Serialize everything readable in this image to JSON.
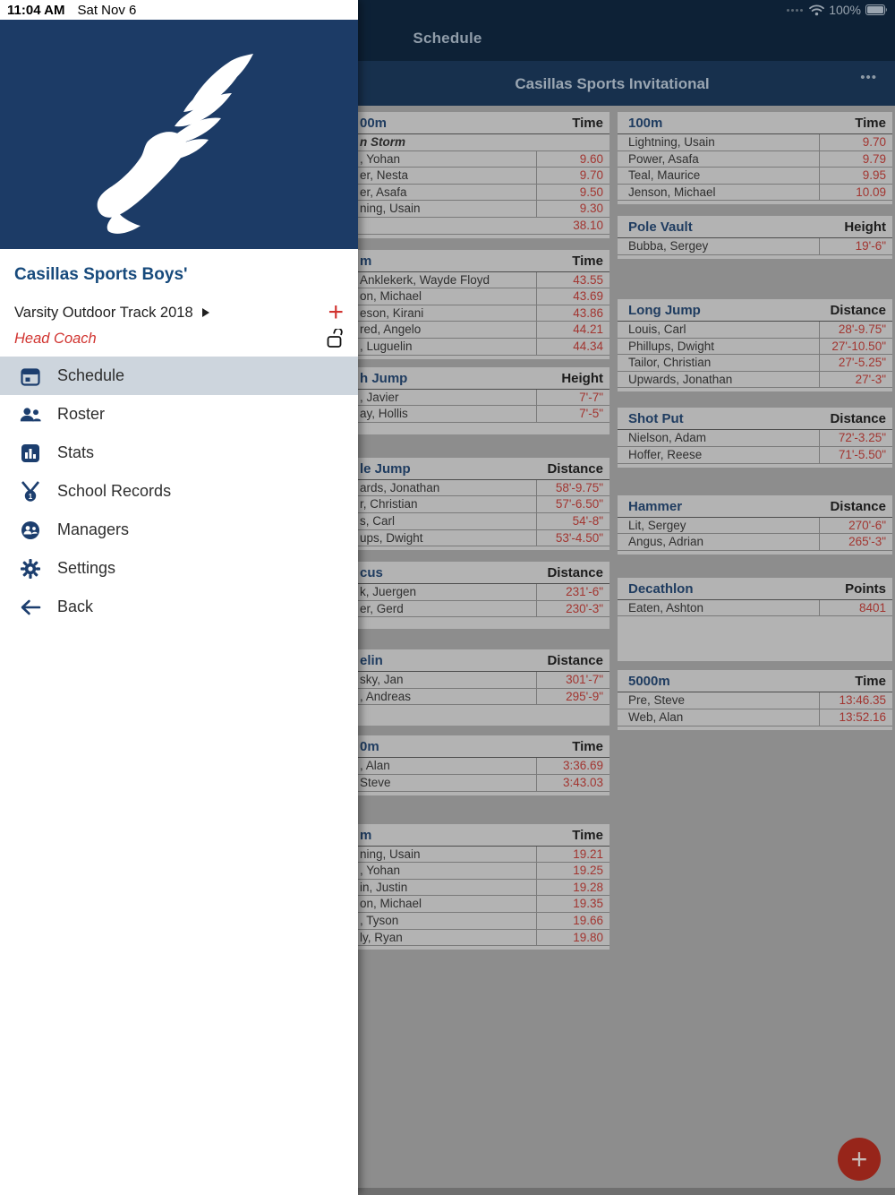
{
  "status_bar": {
    "time": "11:04 AM",
    "date": "Sat Nov 6",
    "battery": "100%"
  },
  "nav": {
    "title": "Schedule"
  },
  "toolbar": {
    "title": "Casillas Sports Invitational",
    "ellipsis_icon": "•••"
  },
  "drawer": {
    "team_name": "Casillas Sports Boys'",
    "season": "Varsity Outdoor Track 2018",
    "role": "Head Coach",
    "add_label": "+",
    "items": [
      {
        "label": "Schedule",
        "icon": "calendar-icon",
        "active": true
      },
      {
        "label": "Roster",
        "icon": "people-icon",
        "active": false
      },
      {
        "label": "Stats",
        "icon": "bar-chart-icon",
        "active": false
      },
      {
        "label": "School Records",
        "icon": "medal-icon",
        "active": false
      },
      {
        "label": "Managers",
        "icon": "managers-icon",
        "active": false
      },
      {
        "label": "Settings",
        "icon": "gear-icon",
        "active": false
      },
      {
        "label": "Back",
        "icon": "back-arrow-icon",
        "active": false
      }
    ]
  },
  "results": {
    "left_column": [
      {
        "title": "00m",
        "value_header": "Time",
        "subheader": "n Storm",
        "rows": [
          {
            "name": ", Yohan",
            "value": "9.60"
          },
          {
            "name": "er, Nesta",
            "value": "9.70"
          },
          {
            "name": "er, Asafa",
            "value": "9.50"
          },
          {
            "name": "ning, Usain",
            "value": "9.30"
          }
        ],
        "total": "38.10"
      },
      {
        "title": "m",
        "value_header": "Time",
        "rows": [
          {
            "name": "Anklekerk, Wayde Floyd",
            "value": "43.55"
          },
          {
            "name": "on, Michael",
            "value": "43.69"
          },
          {
            "name": "eson, Kirani",
            "value": "43.86"
          },
          {
            "name": "red, Angelo",
            "value": "44.21"
          },
          {
            "name": ", Luguelin",
            "value": "44.34"
          }
        ]
      },
      {
        "title": "h Jump",
        "value_header": "Height",
        "rows": [
          {
            "name": ", Javier",
            "value": "7'-7\""
          },
          {
            "name": "ay, Hollis",
            "value": "7'-5\""
          }
        ]
      },
      {
        "title": "le Jump",
        "value_header": "Distance",
        "rows": [
          {
            "name": "ards, Jonathan",
            "value": "58'-9.75\""
          },
          {
            "name": "r, Christian",
            "value": "57'-6.50\""
          },
          {
            "name": "s, Carl",
            "value": "54'-8\""
          },
          {
            "name": "ups, Dwight",
            "value": "53'-4.50\""
          }
        ]
      },
      {
        "title": "cus",
        "value_header": "Distance",
        "rows": [
          {
            "name": "k, Juergen",
            "value": "231'-6\""
          },
          {
            "name": "er, Gerd",
            "value": "230'-3\""
          }
        ]
      },
      {
        "title": "elin",
        "value_header": "Distance",
        "rows": [
          {
            "name": "sky, Jan",
            "value": "301'-7\""
          },
          {
            "name": ", Andreas",
            "value": "295'-9\""
          }
        ]
      },
      {
        "title": "0m",
        "value_header": "Time",
        "rows": [
          {
            "name": ", Alan",
            "value": "3:36.69"
          },
          {
            "name": "Steve",
            "value": "3:43.03"
          }
        ]
      },
      {
        "title": "m",
        "value_header": "Time",
        "rows": [
          {
            "name": "ning, Usain",
            "value": "19.21"
          },
          {
            "name": ", Yohan",
            "value": "19.25"
          },
          {
            "name": "in, Justin",
            "value": "19.28"
          },
          {
            "name": "on, Michael",
            "value": "19.35"
          },
          {
            "name": ", Tyson",
            "value": "19.66"
          },
          {
            "name": "ly, Ryan",
            "value": "19.80"
          }
        ]
      }
    ],
    "right_column": [
      {
        "title": "100m",
        "value_header": "Time",
        "rows": [
          {
            "name": "Lightning, Usain",
            "value": "9.70"
          },
          {
            "name": "Power, Asafa",
            "value": "9.79"
          },
          {
            "name": "Teal, Maurice",
            "value": "9.95"
          },
          {
            "name": "Jenson, Michael",
            "value": "10.09"
          }
        ]
      },
      {
        "title": "Pole Vault",
        "value_header": "Height",
        "rows": [
          {
            "name": "Bubba, Sergey",
            "value": "19'-6\""
          }
        ]
      },
      {
        "title": "Long Jump",
        "value_header": "Distance",
        "rows": [
          {
            "name": "Louis, Carl",
            "value": "28'-9.75\""
          },
          {
            "name": "Phillups, Dwight",
            "value": "27'-10.50\""
          },
          {
            "name": "Tailor, Christian",
            "value": "27'-5.25\""
          },
          {
            "name": "Upwards, Jonathan",
            "value": "27'-3\""
          }
        ]
      },
      {
        "title": "Shot Put",
        "value_header": "Distance",
        "rows": [
          {
            "name": "Nielson, Adam",
            "value": "72'-3.25\""
          },
          {
            "name": "Hoffer, Reese",
            "value": "71'-5.50\""
          }
        ]
      },
      {
        "title": "Hammer",
        "value_header": "Distance",
        "rows": [
          {
            "name": "Lit, Sergey",
            "value": "270'-6\""
          },
          {
            "name": "Angus, Adrian",
            "value": "265'-3\""
          }
        ]
      },
      {
        "title": "Decathlon",
        "value_header": "Points",
        "rows": [
          {
            "name": "Eaten, Ashton",
            "value": "8401"
          }
        ]
      },
      {
        "title": "5000m",
        "value_header": "Time",
        "rows": [
          {
            "name": "Pre, Steve",
            "value": "13:46.35"
          },
          {
            "name": "Web, Alan",
            "value": "13:52.16"
          }
        ]
      }
    ]
  },
  "fab": {
    "label": "+"
  },
  "colors": {
    "drawer_navy": "#1c3b66",
    "accent_red": "#d13430",
    "title_navy": "#174a7c",
    "active_item_bg": "#cdd5dd",
    "result_value_red": "#a23530",
    "event_title_navy": "#1f3c60"
  }
}
